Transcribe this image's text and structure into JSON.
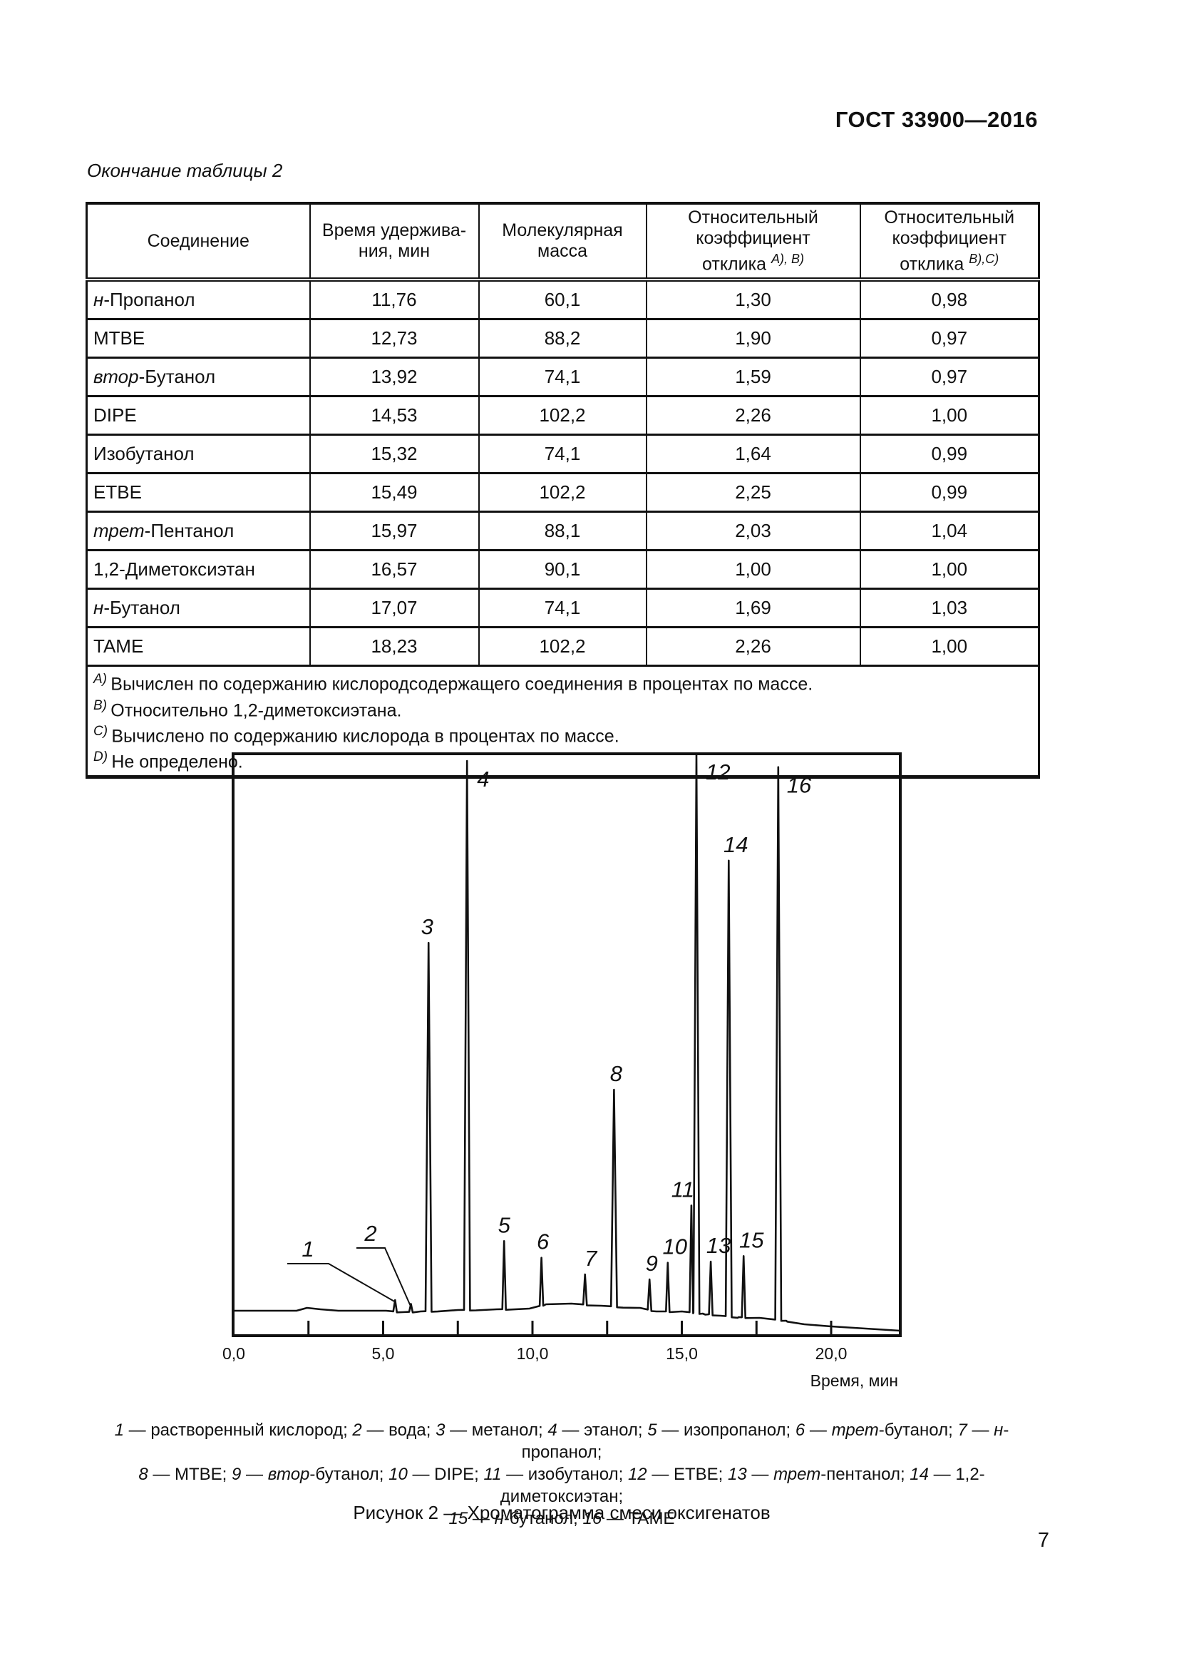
{
  "page": {
    "header": "ГОСТ 33900—2016",
    "table_continuation": "Окончание таблицы 2",
    "page_number": "7"
  },
  "table": {
    "columns": [
      {
        "lines": [
          {
            "t": "Соединение"
          }
        ]
      },
      {
        "lines": [
          {
            "t": "Время удержива-"
          },
          {
            "t": "ния, мин"
          }
        ]
      },
      {
        "lines": [
          {
            "t": "Молекулярная"
          },
          {
            "t": "масса"
          }
        ]
      },
      {
        "lines": [
          {
            "t": "Относительный"
          },
          {
            "t": "коэффициент"
          },
          {
            "t": "отклика",
            "sup": "А), В)"
          }
        ]
      },
      {
        "lines": [
          {
            "t": "Относительный"
          },
          {
            "t": "коэффициент"
          },
          {
            "t": "отклика",
            "sup": "В),С)"
          }
        ]
      }
    ],
    "rows": [
      {
        "prefix": "н",
        "name": "-Пропанол",
        "rt": "11,76",
        "mw": "60,1",
        "k1": "1,30",
        "k2": "0,98"
      },
      {
        "prefix": "",
        "name": "MTBE",
        "rt": "12,73",
        "mw": "88,2",
        "k1": "1,90",
        "k2": "0,97"
      },
      {
        "prefix": "втор",
        "name": "-Бутанол",
        "rt": "13,92",
        "mw": "74,1",
        "k1": "1,59",
        "k2": "0,97"
      },
      {
        "prefix": "",
        "name": "DIPE",
        "rt": "14,53",
        "mw": "102,2",
        "k1": "2,26",
        "k2": "1,00"
      },
      {
        "prefix": "",
        "name": "Изобутанол",
        "rt": "15,32",
        "mw": "74,1",
        "k1": "1,64",
        "k2": "0,99"
      },
      {
        "prefix": "",
        "name": "ETBE",
        "rt": "15,49",
        "mw": "102,2",
        "k1": "2,25",
        "k2": "0,99"
      },
      {
        "prefix": "трет",
        "name": "-Пентанол",
        "rt": "15,97",
        "mw": "88,1",
        "k1": "2,03",
        "k2": "1,04"
      },
      {
        "prefix": "",
        "name": "1,2-Диметоксиэтан",
        "rt": "16,57",
        "mw": "90,1",
        "k1": "1,00",
        "k2": "1,00"
      },
      {
        "prefix": "н",
        "name": "-Бутанол",
        "rt": "17,07",
        "mw": "74,1",
        "k1": "1,69",
        "k2": "1,03"
      },
      {
        "prefix": "",
        "name": "TAME",
        "rt": "18,23",
        "mw": "102,2",
        "k1": "2,26",
        "k2": "1,00"
      }
    ],
    "footnotes": [
      {
        "marker": "А)",
        "text": "Вычислен по содержанию кислородсодержащего соединения в процентах по массе."
      },
      {
        "marker": "В)",
        "text": "Относительно 1,2-диметоксиэтана."
      },
      {
        "marker": "С)",
        "text": "Вычислено по содержанию кислорода в процентах по массе."
      },
      {
        "marker": "D)",
        "text": "Не определено."
      }
    ]
  },
  "figure": {
    "title": "Рисунок 2 — Хроматограмма смеси оксигенатов",
    "legend_lines": [
      [
        {
          "i": 1,
          "t": "1"
        },
        {
          "t": " — растворенный кислород; "
        },
        {
          "i": 1,
          "t": "2"
        },
        {
          "t": " — вода; "
        },
        {
          "i": 1,
          "t": "3"
        },
        {
          "t": " — метанол; "
        },
        {
          "i": 1,
          "t": "4"
        },
        {
          "t": " — этанол; "
        },
        {
          "i": 1,
          "t": "5"
        },
        {
          "t": " — изопропанол; "
        },
        {
          "i": 1,
          "t": "6"
        },
        {
          "t": " — "
        },
        {
          "i": 1,
          "t": "трет"
        },
        {
          "t": "-бутанол; "
        },
        {
          "i": 1,
          "t": "7"
        },
        {
          "t": " — "
        },
        {
          "i": 1,
          "t": "н"
        },
        {
          "t": "-пропанол;"
        }
      ],
      [
        {
          "i": 1,
          "t": "8"
        },
        {
          "t": " — MTBE; "
        },
        {
          "i": 1,
          "t": "9"
        },
        {
          "t": " — "
        },
        {
          "i": 1,
          "t": "втор"
        },
        {
          "t": "-бутанол; "
        },
        {
          "i": 1,
          "t": "10"
        },
        {
          "t": " — DIPE; "
        },
        {
          "i": 1,
          "t": "11"
        },
        {
          "t": " — изобутанол; "
        },
        {
          "i": 1,
          "t": "12"
        },
        {
          "t": " — ETBE; "
        },
        {
          "i": 1,
          "t": "13"
        },
        {
          "t": " — "
        },
        {
          "i": 1,
          "t": "трет"
        },
        {
          "t": "-пентанол; "
        },
        {
          "i": 1,
          "t": "14"
        },
        {
          "t": " — 1,2-диметоксиэтан;"
        }
      ],
      [
        {
          "i": 1,
          "t": "15"
        },
        {
          "t": " — "
        },
        {
          "i": 1,
          "t": "н"
        },
        {
          "t": "-бутанол; "
        },
        {
          "i": 1,
          "t": "16"
        },
        {
          "t": " — TAME"
        }
      ]
    ]
  },
  "chart_data": {
    "type": "line",
    "title": "Рисунок 2 — Хроматограмма смеси оксигенатов",
    "xlabel": "Время, мин",
    "ylabel": "",
    "xlim": [
      0,
      22.3
    ],
    "x_tick_labels": [
      "0,0",
      "5,0",
      "10,0",
      "15,0",
      "20,0"
    ],
    "x_tick_values": [
      0,
      5,
      10,
      15,
      20
    ],
    "x_all_ticks": [
      2.5,
      5,
      7.5,
      10,
      12.5,
      15,
      17.5,
      20
    ],
    "grid": false,
    "peaks": [
      {
        "n": "1",
        "name": "растворенный кислород",
        "t": 5.4,
        "h": 1.8,
        "label": "leader"
      },
      {
        "n": "2",
        "name": "вода",
        "t": 5.93,
        "h": 1.1,
        "label": "leader"
      },
      {
        "n": "3",
        "name": "метанол",
        "t": 6.52,
        "h": 66.0,
        "label": "above",
        "dx": -2
      },
      {
        "n": "4",
        "name": "этанол",
        "t": 7.81,
        "h": 98.7,
        "label": "right",
        "dx": 14
      },
      {
        "n": "5",
        "name": "изопропанол",
        "t": 9.05,
        "h": 12.4,
        "label": "above",
        "dx": 0
      },
      {
        "n": "6",
        "name": "трет-бутанол",
        "t": 10.3,
        "h": 9.4,
        "label": "above",
        "dx": 2
      },
      {
        "n": "7",
        "name": "н-пропанол",
        "t": 11.76,
        "h": 6.4,
        "label": "above",
        "dx": 8
      },
      {
        "n": "8",
        "name": "MTBE",
        "t": 12.73,
        "h": 39.6,
        "label": "above",
        "dx": 3
      },
      {
        "n": "9",
        "name": "втор-бутанол",
        "t": 13.92,
        "h": 5.5,
        "label": "above",
        "dx": 3
      },
      {
        "n": "10",
        "name": "DIPE",
        "t": 14.53,
        "h": 8.5,
        "label": "above",
        "dx": 10
      },
      {
        "n": "11",
        "name": "изобутанол",
        "t": 15.32,
        "h": 18.8,
        "label": "above",
        "dx": -12
      },
      {
        "n": "12",
        "name": "ETBE",
        "t": 15.49,
        "h": 100.0,
        "label": "right",
        "dx": 13
      },
      {
        "n": "13",
        "name": "трет-пентанол",
        "t": 15.97,
        "h": 8.7,
        "label": "above",
        "dx": 11
      },
      {
        "n": "14",
        "name": "1,2-диметоксиэтан",
        "t": 16.57,
        "h": 80.8,
        "label": "above",
        "dx": 10
      },
      {
        "n": "15",
        "name": "н-бутанол",
        "t": 17.07,
        "h": 9.7,
        "label": "above",
        "dx": 11
      },
      {
        "n": "16",
        "name": "TAME",
        "t": 18.23,
        "h": 97.6,
        "label": "right",
        "dx": 12
      }
    ]
  }
}
